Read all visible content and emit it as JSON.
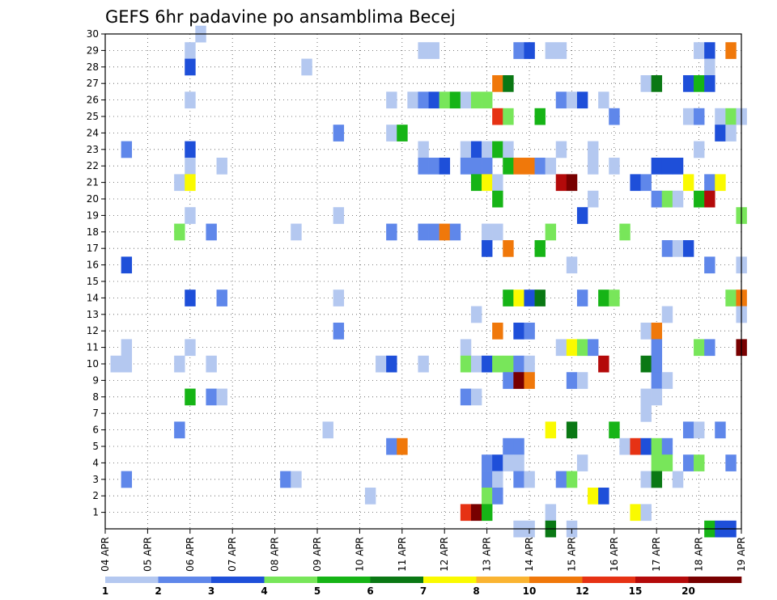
{
  "chart_data": {
    "type": "heatmap",
    "title": "GEFS 6hr padavine po ansamblima Becej",
    "xlabel": "",
    "ylabel": "",
    "x_tick_labels": [
      "04 APR",
      "05 APR",
      "06 APR",
      "07 APR",
      "08 APR",
      "09 APR",
      "10 APR",
      "11 APR",
      "12 APR",
      "13 APR",
      "14 APR",
      "15 APR",
      "16 APR",
      "17 APR",
      "18 APR",
      "19 APR"
    ],
    "y_tick_labels": [
      "1",
      "2",
      "3",
      "4",
      "5",
      "6",
      "7",
      "8",
      "9",
      "10",
      "11",
      "12",
      "13",
      "14",
      "15",
      "16",
      "17",
      "18",
      "19",
      "20",
      "21",
      "22",
      "23",
      "24",
      "25",
      "26",
      "27",
      "28",
      "29",
      "30"
    ],
    "x_range_steps": [
      0,
      60
    ],
    "y_range_members": [
      0,
      30
    ],
    "grid": true,
    "colorbar": {
      "labels": [
        "1",
        "2",
        "3",
        "4",
        "5",
        "6",
        "7",
        "8",
        "10",
        "12",
        "15",
        "20"
      ],
      "colors": [
        "#b4c8f0",
        "#5f87ea",
        "#1e4fd9",
        "#78e65a",
        "#16b416",
        "#0a7814",
        "#fafa00",
        "#fab432",
        "#f0780a",
        "#e63214",
        "#b40a0a",
        "#780000"
      ]
    },
    "cells_note_removed": true,
    "cells": [
      [
        9,
        30,
        1
      ],
      [
        8,
        29,
        1
      ],
      [
        30,
        29,
        1
      ],
      [
        31,
        29,
        1
      ],
      [
        39,
        29,
        2
      ],
      [
        40,
        29,
        3
      ],
      [
        42,
        29,
        1
      ],
      [
        43,
        29,
        1
      ],
      [
        56,
        29,
        1
      ],
      [
        57,
        29,
        3
      ],
      [
        59,
        29,
        9
      ],
      [
        8,
        28,
        3
      ],
      [
        19,
        28,
        1
      ],
      [
        57,
        28,
        1
      ],
      [
        37,
        27,
        9
      ],
      [
        38,
        27,
        6
      ],
      [
        51,
        27,
        1
      ],
      [
        52,
        27,
        6
      ],
      [
        55,
        27,
        3
      ],
      [
        56,
        27,
        5
      ],
      [
        57,
        27,
        3
      ],
      [
        8,
        26,
        1
      ],
      [
        27,
        26,
        1
      ],
      [
        29,
        26,
        1
      ],
      [
        30,
        26,
        2
      ],
      [
        31,
        26,
        3
      ],
      [
        32,
        26,
        4
      ],
      [
        33,
        26,
        5
      ],
      [
        34,
        26,
        1
      ],
      [
        35,
        26,
        4
      ],
      [
        36,
        26,
        4
      ],
      [
        43,
        26,
        2
      ],
      [
        44,
        26,
        1
      ],
      [
        45,
        26,
        3
      ],
      [
        47,
        26,
        1
      ],
      [
        37,
        25,
        10
      ],
      [
        38,
        25,
        4
      ],
      [
        41,
        25,
        5
      ],
      [
        48,
        25,
        2
      ],
      [
        55,
        25,
        1
      ],
      [
        56,
        25,
        2
      ],
      [
        58,
        25,
        1
      ],
      [
        59,
        25,
        4
      ],
      [
        60,
        25,
        1
      ],
      [
        22,
        24,
        2
      ],
      [
        27,
        24,
        1
      ],
      [
        28,
        24,
        5
      ],
      [
        58,
        24,
        3
      ],
      [
        59,
        24,
        1
      ],
      [
        2,
        23,
        2
      ],
      [
        8,
        23,
        3
      ],
      [
        30,
        23,
        1
      ],
      [
        34,
        23,
        1
      ],
      [
        35,
        23,
        3
      ],
      [
        36,
        23,
        1
      ],
      [
        37,
        23,
        5
      ],
      [
        38,
        23,
        1
      ],
      [
        43,
        23,
        1
      ],
      [
        46,
        23,
        1
      ],
      [
        56,
        23,
        1
      ],
      [
        8,
        22,
        1
      ],
      [
        11,
        22,
        1
      ],
      [
        30,
        22,
        2
      ],
      [
        31,
        22,
        2
      ],
      [
        32,
        22,
        3
      ],
      [
        34,
        22,
        2
      ],
      [
        35,
        22,
        2
      ],
      [
        36,
        22,
        2
      ],
      [
        38,
        22,
        5
      ],
      [
        39,
        22,
        9
      ],
      [
        40,
        22,
        9
      ],
      [
        41,
        22,
        2
      ],
      [
        42,
        22,
        1
      ],
      [
        46,
        22,
        1
      ],
      [
        48,
        22,
        1
      ],
      [
        52,
        22,
        3
      ],
      [
        53,
        22,
        3
      ],
      [
        54,
        22,
        3
      ],
      [
        7,
        21,
        1
      ],
      [
        8,
        21,
        7
      ],
      [
        35,
        21,
        5
      ],
      [
        36,
        21,
        7
      ],
      [
        37,
        21,
        1
      ],
      [
        43,
        21,
        11
      ],
      [
        44,
        21,
        12
      ],
      [
        50,
        21,
        3
      ],
      [
        51,
        21,
        2
      ],
      [
        55,
        21,
        7
      ],
      [
        57,
        21,
        2
      ],
      [
        58,
        21,
        7
      ],
      [
        37,
        20,
        5
      ],
      [
        46,
        20,
        1
      ],
      [
        52,
        20,
        2
      ],
      [
        53,
        20,
        4
      ],
      [
        54,
        20,
        1
      ],
      [
        56,
        20,
        5
      ],
      [
        57,
        20,
        11
      ],
      [
        8,
        19,
        1
      ],
      [
        22,
        19,
        1
      ],
      [
        45,
        19,
        3
      ],
      [
        60,
        19,
        4
      ],
      [
        7,
        18,
        4
      ],
      [
        10,
        18,
        2
      ],
      [
        18,
        18,
        1
      ],
      [
        27,
        18,
        2
      ],
      [
        30,
        18,
        2
      ],
      [
        31,
        18,
        2
      ],
      [
        32,
        18,
        9
      ],
      [
        33,
        18,
        2
      ],
      [
        36,
        18,
        1
      ],
      [
        37,
        18,
        1
      ],
      [
        42,
        18,
        4
      ],
      [
        49,
        18,
        4
      ],
      [
        36,
        17,
        3
      ],
      [
        38,
        17,
        9
      ],
      [
        41,
        17,
        5
      ],
      [
        53,
        17,
        2
      ],
      [
        54,
        17,
        1
      ],
      [
        55,
        17,
        3
      ],
      [
        2,
        16,
        3
      ],
      [
        44,
        16,
        1
      ],
      [
        57,
        16,
        2
      ],
      [
        60,
        16,
        1
      ],
      [
        38,
        14,
        5
      ],
      [
        39,
        14,
        7
      ],
      [
        40,
        14,
        3
      ],
      [
        41,
        14,
        6
      ],
      [
        45,
        14,
        2
      ],
      [
        47,
        14,
        5
      ],
      [
        48,
        14,
        4
      ],
      [
        8,
        14,
        3
      ],
      [
        11,
        14,
        2
      ],
      [
        22,
        14,
        1
      ],
      [
        59,
        14,
        4
      ],
      [
        60,
        14,
        9
      ],
      [
        35,
        13,
        1
      ],
      [
        53,
        13,
        1
      ],
      [
        60,
        13,
        1
      ],
      [
        22,
        12,
        2
      ],
      [
        37,
        12,
        9
      ],
      [
        39,
        12,
        3
      ],
      [
        40,
        12,
        2
      ],
      [
        51,
        12,
        1
      ],
      [
        52,
        12,
        9
      ],
      [
        2,
        11,
        1
      ],
      [
        8,
        11,
        1
      ],
      [
        34,
        11,
        1
      ],
      [
        43,
        11,
        1
      ],
      [
        44,
        11,
        7
      ],
      [
        45,
        11,
        4
      ],
      [
        46,
        11,
        2
      ],
      [
        52,
        11,
        2
      ],
      [
        56,
        11,
        4
      ],
      [
        57,
        11,
        2
      ],
      [
        60,
        11,
        12
      ],
      [
        1,
        10,
        1
      ],
      [
        2,
        10,
        1
      ],
      [
        7,
        10,
        1
      ],
      [
        10,
        10,
        1
      ],
      [
        26,
        10,
        1
      ],
      [
        27,
        10,
        3
      ],
      [
        30,
        10,
        1
      ],
      [
        34,
        10,
        4
      ],
      [
        35,
        10,
        1
      ],
      [
        36,
        10,
        3
      ],
      [
        37,
        10,
        4
      ],
      [
        38,
        10,
        4
      ],
      [
        39,
        10,
        2
      ],
      [
        40,
        10,
        1
      ],
      [
        47,
        10,
        11
      ],
      [
        51,
        10,
        6
      ],
      [
        52,
        10,
        2
      ],
      [
        38,
        9,
        2
      ],
      [
        39,
        9,
        12
      ],
      [
        40,
        9,
        9
      ],
      [
        44,
        9,
        2
      ],
      [
        45,
        9,
        1
      ],
      [
        52,
        9,
        2
      ],
      [
        53,
        9,
        1
      ],
      [
        8,
        8,
        5
      ],
      [
        10,
        8,
        2
      ],
      [
        11,
        8,
        1
      ],
      [
        34,
        8,
        2
      ],
      [
        35,
        8,
        1
      ],
      [
        51,
        8,
        1
      ],
      [
        52,
        8,
        1
      ],
      [
        51,
        7,
        1
      ],
      [
        7,
        6,
        2
      ],
      [
        21,
        6,
        1
      ],
      [
        42,
        6,
        7
      ],
      [
        44,
        6,
        6
      ],
      [
        48,
        6,
        5
      ],
      [
        55,
        6,
        2
      ],
      [
        56,
        6,
        1
      ],
      [
        58,
        6,
        2
      ],
      [
        27,
        5,
        2
      ],
      [
        28,
        5,
        9
      ],
      [
        38,
        5,
        2
      ],
      [
        39,
        5,
        2
      ],
      [
        49,
        5,
        1
      ],
      [
        50,
        5,
        10
      ],
      [
        51,
        5,
        3
      ],
      [
        52,
        5,
        4
      ],
      [
        53,
        5,
        2
      ],
      [
        36,
        4,
        2
      ],
      [
        37,
        4,
        3
      ],
      [
        38,
        4,
        1
      ],
      [
        39,
        4,
        1
      ],
      [
        45,
        4,
        1
      ],
      [
        52,
        4,
        4
      ],
      [
        53,
        4,
        4
      ],
      [
        55,
        4,
        2
      ],
      [
        56,
        4,
        4
      ],
      [
        59,
        4,
        2
      ],
      [
        2,
        3,
        2
      ],
      [
        17,
        3,
        2
      ],
      [
        18,
        3,
        1
      ],
      [
        36,
        3,
        2
      ],
      [
        37,
        3,
        1
      ],
      [
        39,
        3,
        2
      ],
      [
        40,
        3,
        1
      ],
      [
        43,
        3,
        2
      ],
      [
        44,
        3,
        4
      ],
      [
        51,
        3,
        1
      ],
      [
        52,
        3,
        6
      ],
      [
        54,
        3,
        1
      ],
      [
        25,
        2,
        1
      ],
      [
        36,
        2,
        4
      ],
      [
        37,
        2,
        2
      ],
      [
        46,
        2,
        7
      ],
      [
        47,
        2,
        3
      ],
      [
        34,
        1,
        10
      ],
      [
        35,
        1,
        12
      ],
      [
        36,
        1,
        5
      ],
      [
        42,
        1,
        1
      ],
      [
        50,
        1,
        7
      ],
      [
        51,
        1,
        1
      ],
      [
        39,
        0,
        1
      ],
      [
        40,
        0,
        1
      ],
      [
        42,
        0,
        6
      ],
      [
        44,
        0,
        1
      ],
      [
        57,
        0,
        5
      ],
      [
        58,
        0,
        3
      ],
      [
        59,
        0,
        3
      ]
    ]
  }
}
